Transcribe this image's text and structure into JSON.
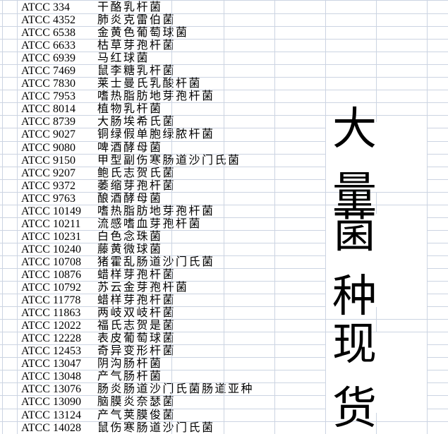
{
  "table": {
    "rows": [
      {
        "code": "ATCC",
        "num": "334",
        "name": "干酪乳杆菌"
      },
      {
        "code": "ATCC",
        "num": "4352",
        "name": "肺炎克雷伯菌"
      },
      {
        "code": "ATCC",
        "num": "6538",
        "name": "金黄色葡萄球菌"
      },
      {
        "code": "ATCC",
        "num": "6633",
        "name": "枯草芽孢杆菌"
      },
      {
        "code": "ATCC",
        "num": "6939",
        "name": "马红球菌"
      },
      {
        "code": "ATCC",
        "num": "7469",
        "name": "鼠李糖乳杆菌"
      },
      {
        "code": "ATCC",
        "num": "7830",
        "name": "莱士曼氏乳酸杆菌"
      },
      {
        "code": "ATCC",
        "num": "7953",
        "name": "嗜热脂肪地芽孢杆菌"
      },
      {
        "code": "ATCC",
        "num": "8014",
        "name": "植物乳杆菌"
      },
      {
        "code": "ATCC",
        "num": "8739",
        "name": "大肠埃希氏菌"
      },
      {
        "code": "ATCC",
        "num": "9027",
        "name": "铜绿假单胞绿脓杆菌"
      },
      {
        "code": "ATCC",
        "num": "9080",
        "name": "啤酒酵母菌"
      },
      {
        "code": "ATCC",
        "num": "9150",
        "name": "甲型副伤寒肠道沙门氏菌"
      },
      {
        "code": "ATCC",
        "num": "9207",
        "name": "鲍氏志贺氏菌"
      },
      {
        "code": "ATCC",
        "num": "9372",
        "name": "萎缩芽孢杆菌"
      },
      {
        "code": "ATCC",
        "num": "9763",
        "name": "酿酒酵母菌"
      },
      {
        "code": "ATCC",
        "num": "10149",
        "name": "嗜热脂肪地芽孢杆菌"
      },
      {
        "code": "ATCC",
        "num": "10211",
        "name": "流感嗜血芽孢杆菌"
      },
      {
        "code": "ATCC",
        "num": "10231",
        "name": "白色念珠菌"
      },
      {
        "code": "ATCC",
        "num": "10240",
        "name": "藤黄微球菌"
      },
      {
        "code": "ATCC",
        "num": "10708",
        "name": "猪霍乱肠道沙门氏菌"
      },
      {
        "code": "ATCC",
        "num": "10876",
        "name": "蜡样芽孢杆菌"
      },
      {
        "code": "ATCC",
        "num": "10792",
        "name": "苏云金芽孢杆菌"
      },
      {
        "code": "ATCC",
        "num": "11778",
        "name": "蜡样芽孢杆菌"
      },
      {
        "code": "ATCC",
        "num": "11863",
        "name": "两岐双岐杆菌"
      },
      {
        "code": "ATCC",
        "num": "12022",
        "name": "福氏志贺是菌"
      },
      {
        "code": "ATCC",
        "num": "12228",
        "name": "表皮葡萄球菌"
      },
      {
        "code": "ATCC",
        "num": "12453",
        "name": "奇异变形杆菌"
      },
      {
        "code": "ATCC",
        "num": "13047",
        "name": "阴沟肠杆菌"
      },
      {
        "code": "ATCC",
        "num": "13048",
        "name": "产气肠杆菌"
      },
      {
        "code": "ATCC",
        "num": "13076",
        "name": "肠炎肠道沙门氏菌肠道亚种"
      },
      {
        "code": "ATCC",
        "num": "13090",
        "name": "脑膜炎奈瑟菌"
      },
      {
        "code": "ATCC",
        "num": "13124",
        "name": "产气荚膜俊菌"
      },
      {
        "code": "ATCC",
        "num": "14028",
        "name": "鼠伤寒肠道沙门氏菌"
      }
    ]
  },
  "overlay": {
    "lines": [
      "大量",
      "菌种",
      "现货"
    ]
  },
  "colors": {
    "gridline": "#ccd4e2",
    "text": "#000000",
    "background": "#ffffff",
    "overlay_text": "#000000"
  }
}
